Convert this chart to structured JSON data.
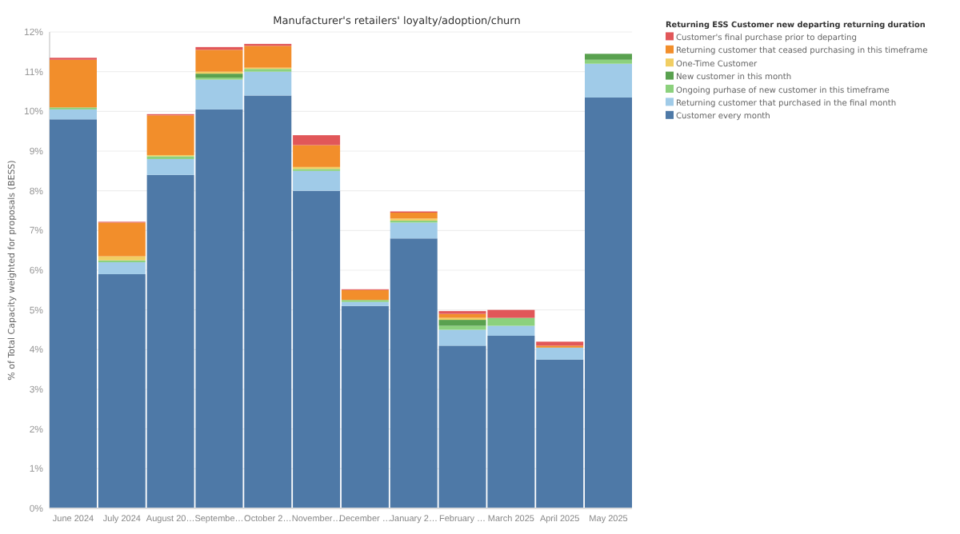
{
  "chart_data": {
    "type": "bar",
    "stacked": true,
    "title": "Manufacturer's retailers' loyalty/adoption/churn",
    "ylabel": "% of Total Capacity weighted for proposals (BESS)",
    "legend_title": "Returning ESS Customer new departing returning duration",
    "categories": [
      "June 2024",
      "July 2024",
      "August 20…",
      "Septembe…",
      "October 2…",
      "November…",
      "December …",
      "January 2…",
      "February …",
      "March 2025",
      "April 2025",
      "May 2025"
    ],
    "series": [
      {
        "name": "Customer every month",
        "color": "#4e79a7",
        "values": [
          9.8,
          5.9,
          8.4,
          10.05,
          10.4,
          8.0,
          5.1,
          6.8,
          4.1,
          4.35,
          3.75,
          10.35
        ]
      },
      {
        "name": "Returning customer that purchased in the final month",
        "color": "#a0cbe8",
        "values": [
          0.25,
          0.3,
          0.4,
          0.75,
          0.6,
          0.5,
          0.1,
          0.4,
          0.4,
          0.25,
          0.3,
          0.85
        ]
      },
      {
        "name": "Ongoing purhase of new customer in this timeframe",
        "color": "#8cd17d",
        "values": [
          0.05,
          0.05,
          0.07,
          0.05,
          0.07,
          0.05,
          0.05,
          0.05,
          0.1,
          0.2,
          0,
          0.1
        ]
      },
      {
        "name": "New customer in this month",
        "color": "#59a14f",
        "values": [
          0,
          0,
          0,
          0.1,
          0,
          0,
          0,
          0,
          0.15,
          0,
          0,
          0.15
        ]
      },
      {
        "name": "One-Time Customer",
        "color": "#f1ce63",
        "values": [
          0,
          0.1,
          0.03,
          0.05,
          0.03,
          0.05,
          0,
          0.05,
          0.05,
          0,
          0,
          0
        ]
      },
      {
        "name": "Returning customer that ceased purchasing in this timeframe",
        "color": "#f28e2b",
        "values": [
          1.2,
          0.85,
          1.0,
          0.55,
          0.55,
          0.55,
          0.25,
          0.15,
          0.1,
          0,
          0.05,
          0
        ]
      },
      {
        "name": "Customer's final purchase prior to departing",
        "color": "#e15759",
        "values": [
          0.05,
          0.02,
          0.03,
          0.07,
          0.05,
          0.25,
          0.02,
          0.03,
          0.07,
          0.2,
          0.1,
          0
        ]
      }
    ],
    "ylim": [
      0,
      12
    ],
    "yticks": [
      {
        "value": 0,
        "label": "0%"
      },
      {
        "value": 1,
        "label": "1%"
      },
      {
        "value": 2,
        "label": "2%"
      },
      {
        "value": 3,
        "label": "3%"
      },
      {
        "value": 4,
        "label": "4%"
      },
      {
        "value": 5,
        "label": "5%"
      },
      {
        "value": 6,
        "label": "6%"
      },
      {
        "value": 7,
        "label": "7%"
      },
      {
        "value": 8,
        "label": "8%"
      },
      {
        "value": 9,
        "label": "9%"
      },
      {
        "value": 10,
        "label": "10%"
      },
      {
        "value": 11,
        "label": "11%"
      },
      {
        "value": 12,
        "label": "12%"
      }
    ],
    "grid": "y",
    "legend": "right"
  }
}
